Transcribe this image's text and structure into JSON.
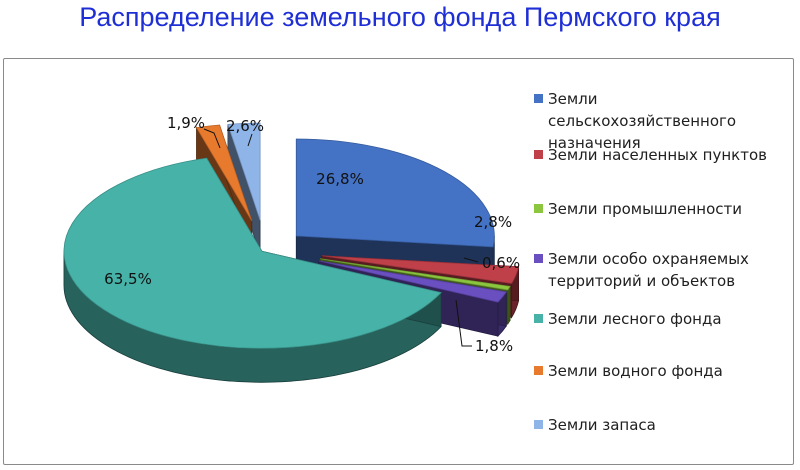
{
  "chart_data": {
    "type": "pie",
    "title": "Распределение земельного фонда Пермского края",
    "legend_position": "right",
    "slices": [
      {
        "label": "Земли сельскохозяйственного назначения",
        "value": 26.8,
        "display": "26,8%",
        "color": "#4472c4"
      },
      {
        "label": "Земли населенных пунктов",
        "value": 2.8,
        "display": "2,8%",
        "color": "#c0404a"
      },
      {
        "label": "Земли промышленности",
        "value": 0.6,
        "display": "0,6%",
        "color": "#8cc63f"
      },
      {
        "label": "Земли особо охраняемых территорий и объектов",
        "value": 1.8,
        "display": "1,8%",
        "color": "#6a4fc0"
      },
      {
        "label": "Земли лесного фонда",
        "value": 63.5,
        "display": "63,5%",
        "color": "#46b2a8"
      },
      {
        "label": "Земли водного фонда",
        "value": 1.9,
        "display": "1,9%",
        "color": "#e87a2e"
      },
      {
        "label": "Земли запаса",
        "value": 2.6,
        "display": "2,6%",
        "color": "#8fb4e8"
      }
    ]
  }
}
